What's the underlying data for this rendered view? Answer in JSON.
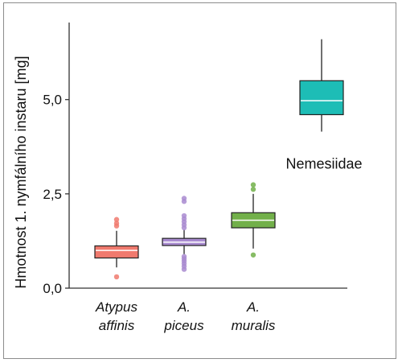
{
  "chart_data": {
    "type": "box",
    "ylabel": "Hmotnost 1. nymfálního instaru [mg]",
    "ylim": [
      0,
      7
    ],
    "yticks": [
      {
        "value": 0,
        "label": "0,0"
      },
      {
        "value": 2.5,
        "label": "2,5"
      },
      {
        "value": 5,
        "label": "5,0"
      }
    ],
    "categories": [
      {
        "line1": "Atypus",
        "line2": "affinis"
      },
      {
        "line1": "A.",
        "line2": "piceus"
      },
      {
        "line1": "A.",
        "line2": "muralis"
      },
      {
        "line1": "",
        "line2": ""
      }
    ],
    "boxes": [
      {
        "q1": 0.8,
        "median": 1.0,
        "q3": 1.12,
        "whisker_low": 0.55,
        "whisker_high": 1.52,
        "color": "#f07a6e",
        "outliers": [
          0.3,
          1.65,
          1.72,
          1.82
        ]
      },
      {
        "q1": 1.13,
        "median": 1.22,
        "q3": 1.32,
        "whisker_low": 0.9,
        "whisker_high": 1.55,
        "color": "#a98bd0",
        "outliers": [
          0.5,
          0.58,
          0.65,
          0.72,
          0.78,
          0.84,
          1.6,
          1.68,
          1.76,
          1.84,
          1.92,
          2.3,
          2.38
        ]
      },
      {
        "q1": 1.6,
        "median": 1.8,
        "q3": 2.0,
        "whisker_low": 1.05,
        "whisker_high": 2.5,
        "color": "#72b04a",
        "outliers": [
          0.88,
          2.62,
          2.74
        ]
      },
      {
        "q1": 4.6,
        "median": 4.97,
        "q3": 5.5,
        "whisker_low": 4.15,
        "whisker_high": 6.6,
        "color": "#1dbdb6",
        "outliers": []
      }
    ],
    "annotations": [
      {
        "text": "Nemesiidae",
        "category_index": 3,
        "y": 3.3
      }
    ]
  }
}
